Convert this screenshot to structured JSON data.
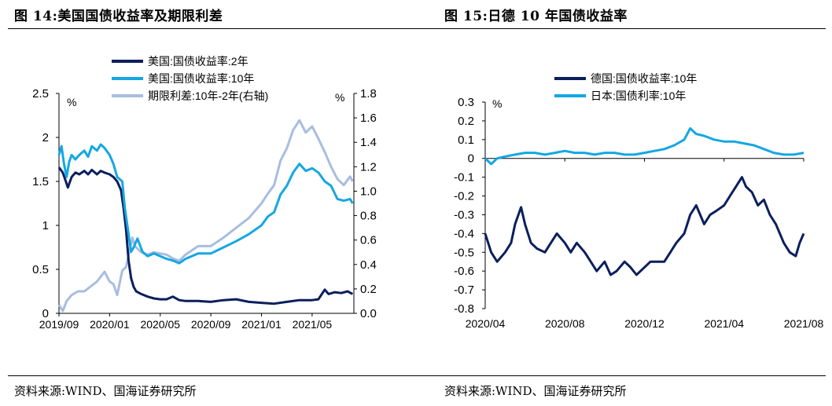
{
  "left_panel": {
    "title": "图 14:美国国债收益率及期限利差",
    "source": "资料来源:WIND、国海证券研究所"
  },
  "right_panel": {
    "title": "图 15:日德 10 年国债收益率",
    "source": "资料来源:WIND、国海证券研究所"
  },
  "colors": {
    "dark_navy": "#0b1f5c",
    "bright_blue": "#14a7e3",
    "light_blue": "#a8bde0"
  },
  "chart_data": [
    {
      "type": "line",
      "title": "美国国债收益率及期限利差",
      "left_unit": "%",
      "right_unit": "%",
      "ylim_left": [
        0,
        2.5
      ],
      "ylim_right": [
        0,
        1.8
      ],
      "y_ticks_left": [
        "0",
        "0.5",
        "1",
        "1.5",
        "2",
        "2.5"
      ],
      "y_ticks_right": [
        "0.0",
        "0.2",
        "0.4",
        "0.6",
        "0.8",
        "1.0",
        "1.2",
        "1.4",
        "1.6",
        "1.8"
      ],
      "x_ticks": [
        "2019/09",
        "2020/01",
        "2020/05",
        "2020/09",
        "2021/01",
        "2021/05"
      ],
      "x_range_months": [
        0,
        23.3
      ],
      "x_tick_months": [
        0,
        4,
        8,
        12,
        16,
        20
      ],
      "series": [
        {
          "name": "美国:国债收益率:2年",
          "axis": "left",
          "color_key": "dark_navy",
          "points": [
            [
              0,
              1.66
            ],
            [
              0.3,
              1.6
            ],
            [
              0.5,
              1.52
            ],
            [
              0.7,
              1.43
            ],
            [
              1.0,
              1.55
            ],
            [
              1.3,
              1.6
            ],
            [
              1.6,
              1.58
            ],
            [
              2.0,
              1.62
            ],
            [
              2.3,
              1.58
            ],
            [
              2.6,
              1.63
            ],
            [
              3.0,
              1.58
            ],
            [
              3.3,
              1.62
            ],
            [
              3.6,
              1.6
            ],
            [
              4.0,
              1.58
            ],
            [
              4.3,
              1.55
            ],
            [
              4.6,
              1.5
            ],
            [
              4.9,
              1.4
            ],
            [
              5.1,
              1.2
            ],
            [
              5.3,
              0.95
            ],
            [
              5.5,
              0.6
            ],
            [
              5.7,
              0.4
            ],
            [
              5.9,
              0.3
            ],
            [
              6.1,
              0.25
            ],
            [
              6.5,
              0.22
            ],
            [
              7.0,
              0.19
            ],
            [
              7.5,
              0.17
            ],
            [
              8.0,
              0.16
            ],
            [
              8.5,
              0.16
            ],
            [
              9.0,
              0.19
            ],
            [
              9.5,
              0.15
            ],
            [
              10.0,
              0.14
            ],
            [
              11.0,
              0.14
            ],
            [
              12.0,
              0.13
            ],
            [
              13.0,
              0.15
            ],
            [
              14.0,
              0.16
            ],
            [
              15.0,
              0.13
            ],
            [
              16.0,
              0.12
            ],
            [
              17.0,
              0.11
            ],
            [
              18.0,
              0.13
            ],
            [
              19.0,
              0.15
            ],
            [
              20.0,
              0.15
            ],
            [
              20.5,
              0.16
            ],
            [
              21.0,
              0.27
            ],
            [
              21.3,
              0.22
            ],
            [
              21.8,
              0.24
            ],
            [
              22.3,
              0.23
            ],
            [
              22.8,
              0.25
            ],
            [
              23.2,
              0.22
            ]
          ]
        },
        {
          "name": "美国:国债收益率:10年",
          "axis": "left",
          "color_key": "bright_blue",
          "points": [
            [
              0,
              1.8
            ],
            [
              0.2,
              1.9
            ],
            [
              0.4,
              1.7
            ],
            [
              0.6,
              1.55
            ],
            [
              0.8,
              1.72
            ],
            [
              1.0,
              1.8
            ],
            [
              1.3,
              1.75
            ],
            [
              1.6,
              1.8
            ],
            [
              2.0,
              1.85
            ],
            [
              2.3,
              1.78
            ],
            [
              2.6,
              1.9
            ],
            [
              3.0,
              1.85
            ],
            [
              3.3,
              1.92
            ],
            [
              3.6,
              1.88
            ],
            [
              4.0,
              1.8
            ],
            [
              4.3,
              1.7
            ],
            [
              4.6,
              1.55
            ],
            [
              5.0,
              1.5
            ],
            [
              5.2,
              1.2
            ],
            [
              5.5,
              0.9
            ],
            [
              5.7,
              0.7
            ],
            [
              5.9,
              0.75
            ],
            [
              6.2,
              0.85
            ],
            [
              6.6,
              0.7
            ],
            [
              7.0,
              0.65
            ],
            [
              7.5,
              0.68
            ],
            [
              8.0,
              0.65
            ],
            [
              8.5,
              0.62
            ],
            [
              9.0,
              0.6
            ],
            [
              9.5,
              0.57
            ],
            [
              10.0,
              0.62
            ],
            [
              11.0,
              0.68
            ],
            [
              12.0,
              0.68
            ],
            [
              13.0,
              0.75
            ],
            [
              14.0,
              0.82
            ],
            [
              15.0,
              0.9
            ],
            [
              16.0,
              1.0
            ],
            [
              16.5,
              1.1
            ],
            [
              17.0,
              1.15
            ],
            [
              17.5,
              1.35
            ],
            [
              18.0,
              1.45
            ],
            [
              18.5,
              1.6
            ],
            [
              19.0,
              1.7
            ],
            [
              19.5,
              1.62
            ],
            [
              20.0,
              1.65
            ],
            [
              20.5,
              1.6
            ],
            [
              21.0,
              1.5
            ],
            [
              21.5,
              1.45
            ],
            [
              22.0,
              1.3
            ],
            [
              22.5,
              1.28
            ],
            [
              23.0,
              1.3
            ],
            [
              23.2,
              1.25
            ]
          ]
        },
        {
          "name": "期限利差:10年-2年(右轴)",
          "axis": "right",
          "color_key": "light_blue",
          "points": [
            [
              0,
              0.07
            ],
            [
              0.3,
              0.02
            ],
            [
              0.6,
              0.1
            ],
            [
              1.0,
              0.15
            ],
            [
              1.5,
              0.18
            ],
            [
              2.0,
              0.18
            ],
            [
              2.5,
              0.22
            ],
            [
              3.0,
              0.26
            ],
            [
              3.3,
              0.3
            ],
            [
              3.6,
              0.34
            ],
            [
              4.0,
              0.26
            ],
            [
              4.3,
              0.24
            ],
            [
              4.6,
              0.15
            ],
            [
              5.0,
              0.35
            ],
            [
              5.3,
              0.38
            ],
            [
              5.6,
              0.52
            ],
            [
              5.8,
              0.62
            ],
            [
              6.0,
              0.55
            ],
            [
              6.5,
              0.5
            ],
            [
              7.0,
              0.48
            ],
            [
              7.5,
              0.5
            ],
            [
              8.0,
              0.49
            ],
            [
              8.5,
              0.48
            ],
            [
              9.0,
              0.45
            ],
            [
              9.5,
              0.43
            ],
            [
              10.0,
              0.48
            ],
            [
              11.0,
              0.55
            ],
            [
              12.0,
              0.55
            ],
            [
              13.0,
              0.62
            ],
            [
              14.0,
              0.7
            ],
            [
              15.0,
              0.78
            ],
            [
              16.0,
              0.9
            ],
            [
              16.5,
              0.98
            ],
            [
              17.0,
              1.05
            ],
            [
              17.5,
              1.25
            ],
            [
              18.0,
              1.35
            ],
            [
              18.5,
              1.5
            ],
            [
              19.0,
              1.58
            ],
            [
              19.5,
              1.48
            ],
            [
              20.0,
              1.53
            ],
            [
              20.5,
              1.43
            ],
            [
              21.0,
              1.32
            ],
            [
              21.5,
              1.2
            ],
            [
              22.0,
              1.1
            ],
            [
              22.5,
              1.05
            ],
            [
              23.0,
              1.12
            ],
            [
              23.2,
              1.08
            ]
          ]
        }
      ]
    },
    {
      "type": "line",
      "title": "日德 10 年国债收益率",
      "unit": "%",
      "ylim": [
        -0.8,
        0.3
      ],
      "y_ticks": [
        "0.3",
        "0.2",
        "0.1",
        "0",
        "-0.1",
        "-0.2",
        "-0.3",
        "-0.4",
        "-0.5",
        "-0.6",
        "-0.7",
        "-0.8"
      ],
      "x_ticks": [
        "2020/04",
        "2020/08",
        "2020/12",
        "2021/04",
        "2021/08"
      ],
      "x_range_months": [
        0,
        16
      ],
      "x_tick_months": [
        0,
        4,
        8,
        12,
        16
      ],
      "series": [
        {
          "name": "德国:国债收益率:10年",
          "color_key": "dark_navy",
          "points": [
            [
              0,
              -0.4
            ],
            [
              0.3,
              -0.5
            ],
            [
              0.6,
              -0.55
            ],
            [
              1.0,
              -0.5
            ],
            [
              1.3,
              -0.45
            ],
            [
              1.5,
              -0.35
            ],
            [
              1.8,
              -0.26
            ],
            [
              2.0,
              -0.35
            ],
            [
              2.3,
              -0.45
            ],
            [
              2.6,
              -0.48
            ],
            [
              3.0,
              -0.5
            ],
            [
              3.3,
              -0.45
            ],
            [
              3.6,
              -0.4
            ],
            [
              4.0,
              -0.45
            ],
            [
              4.3,
              -0.5
            ],
            [
              4.6,
              -0.45
            ],
            [
              5.0,
              -0.5
            ],
            [
              5.3,
              -0.55
            ],
            [
              5.6,
              -0.6
            ],
            [
              6.0,
              -0.55
            ],
            [
              6.3,
              -0.62
            ],
            [
              6.6,
              -0.6
            ],
            [
              7.0,
              -0.55
            ],
            [
              7.3,
              -0.58
            ],
            [
              7.6,
              -0.62
            ],
            [
              8.0,
              -0.58
            ],
            [
              8.3,
              -0.55
            ],
            [
              8.6,
              -0.55
            ],
            [
              9.0,
              -0.55
            ],
            [
              9.3,
              -0.5
            ],
            [
              9.6,
              -0.45
            ],
            [
              10.0,
              -0.4
            ],
            [
              10.3,
              -0.3
            ],
            [
              10.6,
              -0.25
            ],
            [
              10.8,
              -0.3
            ],
            [
              11.0,
              -0.35
            ],
            [
              11.3,
              -0.3
            ],
            [
              11.6,
              -0.28
            ],
            [
              12.0,
              -0.25
            ],
            [
              12.3,
              -0.2
            ],
            [
              12.6,
              -0.15
            ],
            [
              12.9,
              -0.1
            ],
            [
              13.1,
              -0.15
            ],
            [
              13.4,
              -0.18
            ],
            [
              13.7,
              -0.25
            ],
            [
              14.0,
              -0.22
            ],
            [
              14.3,
              -0.3
            ],
            [
              14.6,
              -0.35
            ],
            [
              15.0,
              -0.45
            ],
            [
              15.3,
              -0.5
            ],
            [
              15.6,
              -0.52
            ],
            [
              15.8,
              -0.45
            ],
            [
              16.0,
              -0.4
            ]
          ]
        },
        {
          "name": "日本:国债利率:10年",
          "color_key": "bright_blue",
          "points": [
            [
              0,
              0.0
            ],
            [
              0.3,
              -0.03
            ],
            [
              0.6,
              0.0
            ],
            [
              1.0,
              0.01
            ],
            [
              1.5,
              0.02
            ],
            [
              2.0,
              0.03
            ],
            [
              2.5,
              0.03
            ],
            [
              3.0,
              0.02
            ],
            [
              3.5,
              0.03
            ],
            [
              4.0,
              0.04
            ],
            [
              4.5,
              0.03
            ],
            [
              5.0,
              0.03
            ],
            [
              5.5,
              0.02
            ],
            [
              6.0,
              0.03
            ],
            [
              6.5,
              0.03
            ],
            [
              7.0,
              0.02
            ],
            [
              7.5,
              0.02
            ],
            [
              8.0,
              0.03
            ],
            [
              8.5,
              0.04
            ],
            [
              9.0,
              0.05
            ],
            [
              9.5,
              0.07
            ],
            [
              10.0,
              0.1
            ],
            [
              10.3,
              0.16
            ],
            [
              10.6,
              0.13
            ],
            [
              11.0,
              0.12
            ],
            [
              11.5,
              0.1
            ],
            [
              12.0,
              0.09
            ],
            [
              12.5,
              0.09
            ],
            [
              13.0,
              0.08
            ],
            [
              13.5,
              0.07
            ],
            [
              14.0,
              0.05
            ],
            [
              14.5,
              0.03
            ],
            [
              15.0,
              0.02
            ],
            [
              15.5,
              0.02
            ],
            [
              16.0,
              0.03
            ]
          ]
        }
      ]
    }
  ]
}
